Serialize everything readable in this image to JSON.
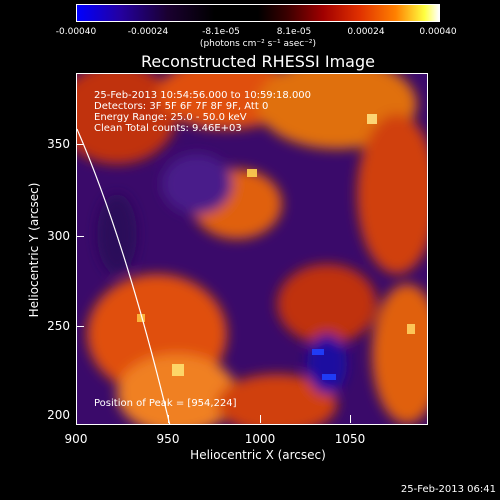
{
  "colorbar": {
    "ticks": [
      "-0.00040",
      "-0.00024",
      "-8.1e-05",
      "8.1e-05",
      "0.00024",
      "0.00040"
    ],
    "units": "(photons cm⁻² s⁻¹ asec⁻²)"
  },
  "title": "Reconstructed RHESSI Image",
  "info": {
    "time_range": "25-Feb-2013 10:54:56.000 to 10:59:18.000",
    "detectors": "Detectors: 3F 5F 6F 7F 8F 9F, Att 0",
    "energy": "Energy Range: 25.0 - 50.0 keV",
    "clean": "Clean    Total counts: 9.46E+03"
  },
  "peak": "Position of Peak = [954,224]",
  "axes": {
    "xlabel": "Heliocentric X (arcsec)",
    "ylabel": "Heliocentric Y (arcsec)",
    "xticks": [
      "900",
      "950",
      "1000",
      "1050"
    ],
    "yticks": [
      "350",
      "300",
      "250",
      "200"
    ]
  },
  "timestamp": "25-Feb-2013 06:41"
}
